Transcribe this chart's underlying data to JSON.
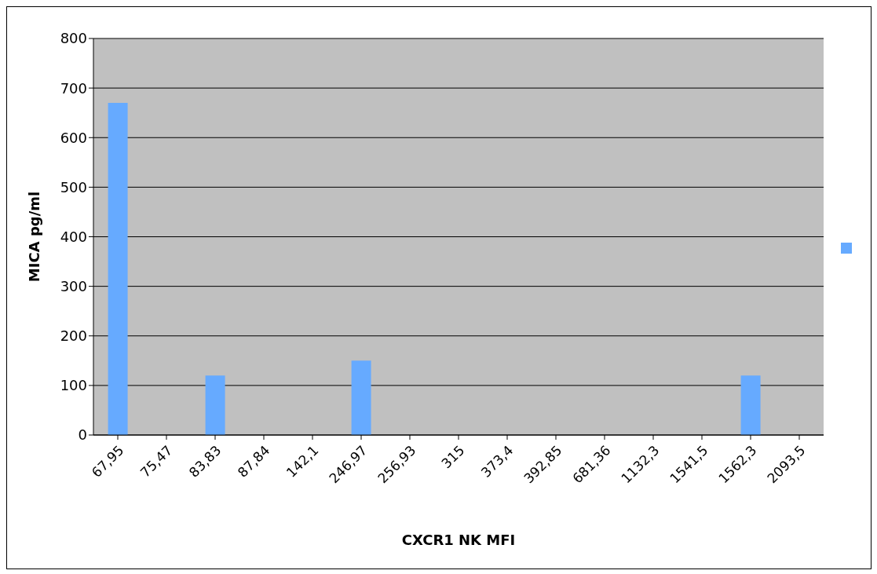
{
  "chart_data": {
    "type": "bar",
    "xlabel": "CXCR1 NK MFI",
    "ylabel": "MICA pg/ml",
    "categories": [
      "67,95",
      "75,47",
      "83,83",
      "87,84",
      "142,1",
      "246,97",
      "256,93",
      "315",
      "373,4",
      "392,85",
      "681,36",
      "1132,3",
      "1541,5",
      "1562,3",
      "2093,5"
    ],
    "series": [
      {
        "color": "#66aaff",
        "values": [
          670,
          null,
          120,
          null,
          null,
          150,
          null,
          null,
          null,
          null,
          null,
          null,
          null,
          120,
          null
        ]
      }
    ],
    "ylim": [
      0,
      800
    ],
    "yticks": [
      0,
      100,
      200,
      300,
      400,
      500,
      600,
      700,
      800
    ],
    "grid": "y"
  }
}
